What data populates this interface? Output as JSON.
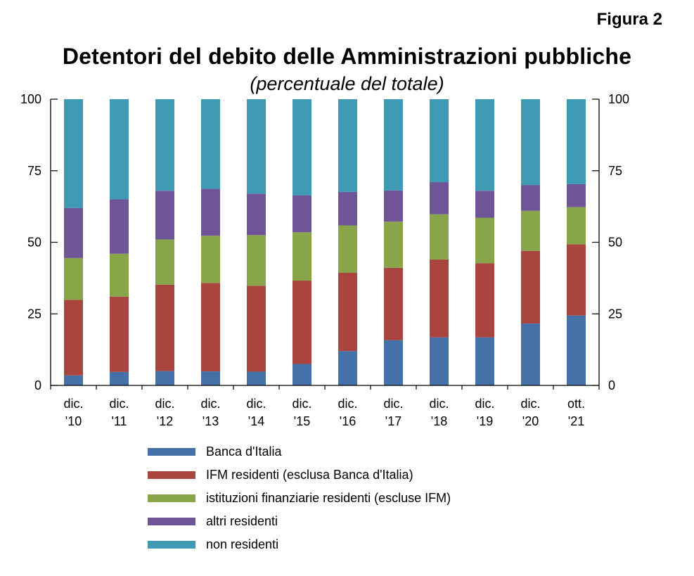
{
  "figure_label": "Figura 2",
  "chart_data": {
    "type": "bar",
    "stacked": true,
    "title": "Detentori del debito delle Amministrazioni pubbliche",
    "subtitle": "(percentuale del totale)",
    "xlabel": "",
    "ylabel": "",
    "ylim": [
      0,
      100
    ],
    "yticks": [
      0,
      25,
      50,
      75,
      100
    ],
    "grid": false,
    "legend_position": "bottom",
    "categories": [
      [
        "dic.",
        "'10"
      ],
      [
        "dic.",
        "'11"
      ],
      [
        "dic.",
        "'12"
      ],
      [
        "dic.",
        "'13"
      ],
      [
        "dic.",
        "'14"
      ],
      [
        "dic.",
        "'15"
      ],
      [
        "dic.",
        "'16"
      ],
      [
        "dic.",
        "'17"
      ],
      [
        "dic.",
        "'18"
      ],
      [
        "dic.",
        "'19"
      ],
      [
        "dic.",
        "'20"
      ],
      [
        "ott.",
        "'21"
      ]
    ],
    "series": [
      {
        "name": "Banca d'Italia",
        "color": "#4472a8",
        "values": [
          3.5,
          4.7,
          5.0,
          4.9,
          4.8,
          7.5,
          12.0,
          15.8,
          16.8,
          16.8,
          21.6,
          24.4
        ]
      },
      {
        "name": "IFM residenti (esclusa Banca d'Italia)",
        "color": "#a9443f",
        "values": [
          26.4,
          26.3,
          30.2,
          30.9,
          30.0,
          29.1,
          27.4,
          25.3,
          27.2,
          25.9,
          25.4,
          24.9
        ]
      },
      {
        "name": "istituzioni finanziarie residenti (escluse IFM)",
        "color": "#88a54a",
        "values": [
          14.6,
          15.0,
          15.8,
          16.5,
          17.7,
          16.9,
          16.5,
          16.1,
          15.8,
          15.9,
          14.0,
          13.0
        ]
      },
      {
        "name": "altri residenti",
        "color": "#6f5497",
        "values": [
          17.5,
          19.0,
          17.0,
          16.4,
          14.5,
          12.9,
          11.7,
          10.9,
          11.2,
          9.4,
          9.0,
          8.0
        ]
      },
      {
        "name": "non residenti",
        "color": "#3f9bb3",
        "values": [
          38.0,
          35.0,
          32.0,
          31.3,
          33.0,
          33.6,
          32.4,
          31.9,
          29.0,
          32.0,
          30.0,
          29.7
        ]
      }
    ]
  }
}
